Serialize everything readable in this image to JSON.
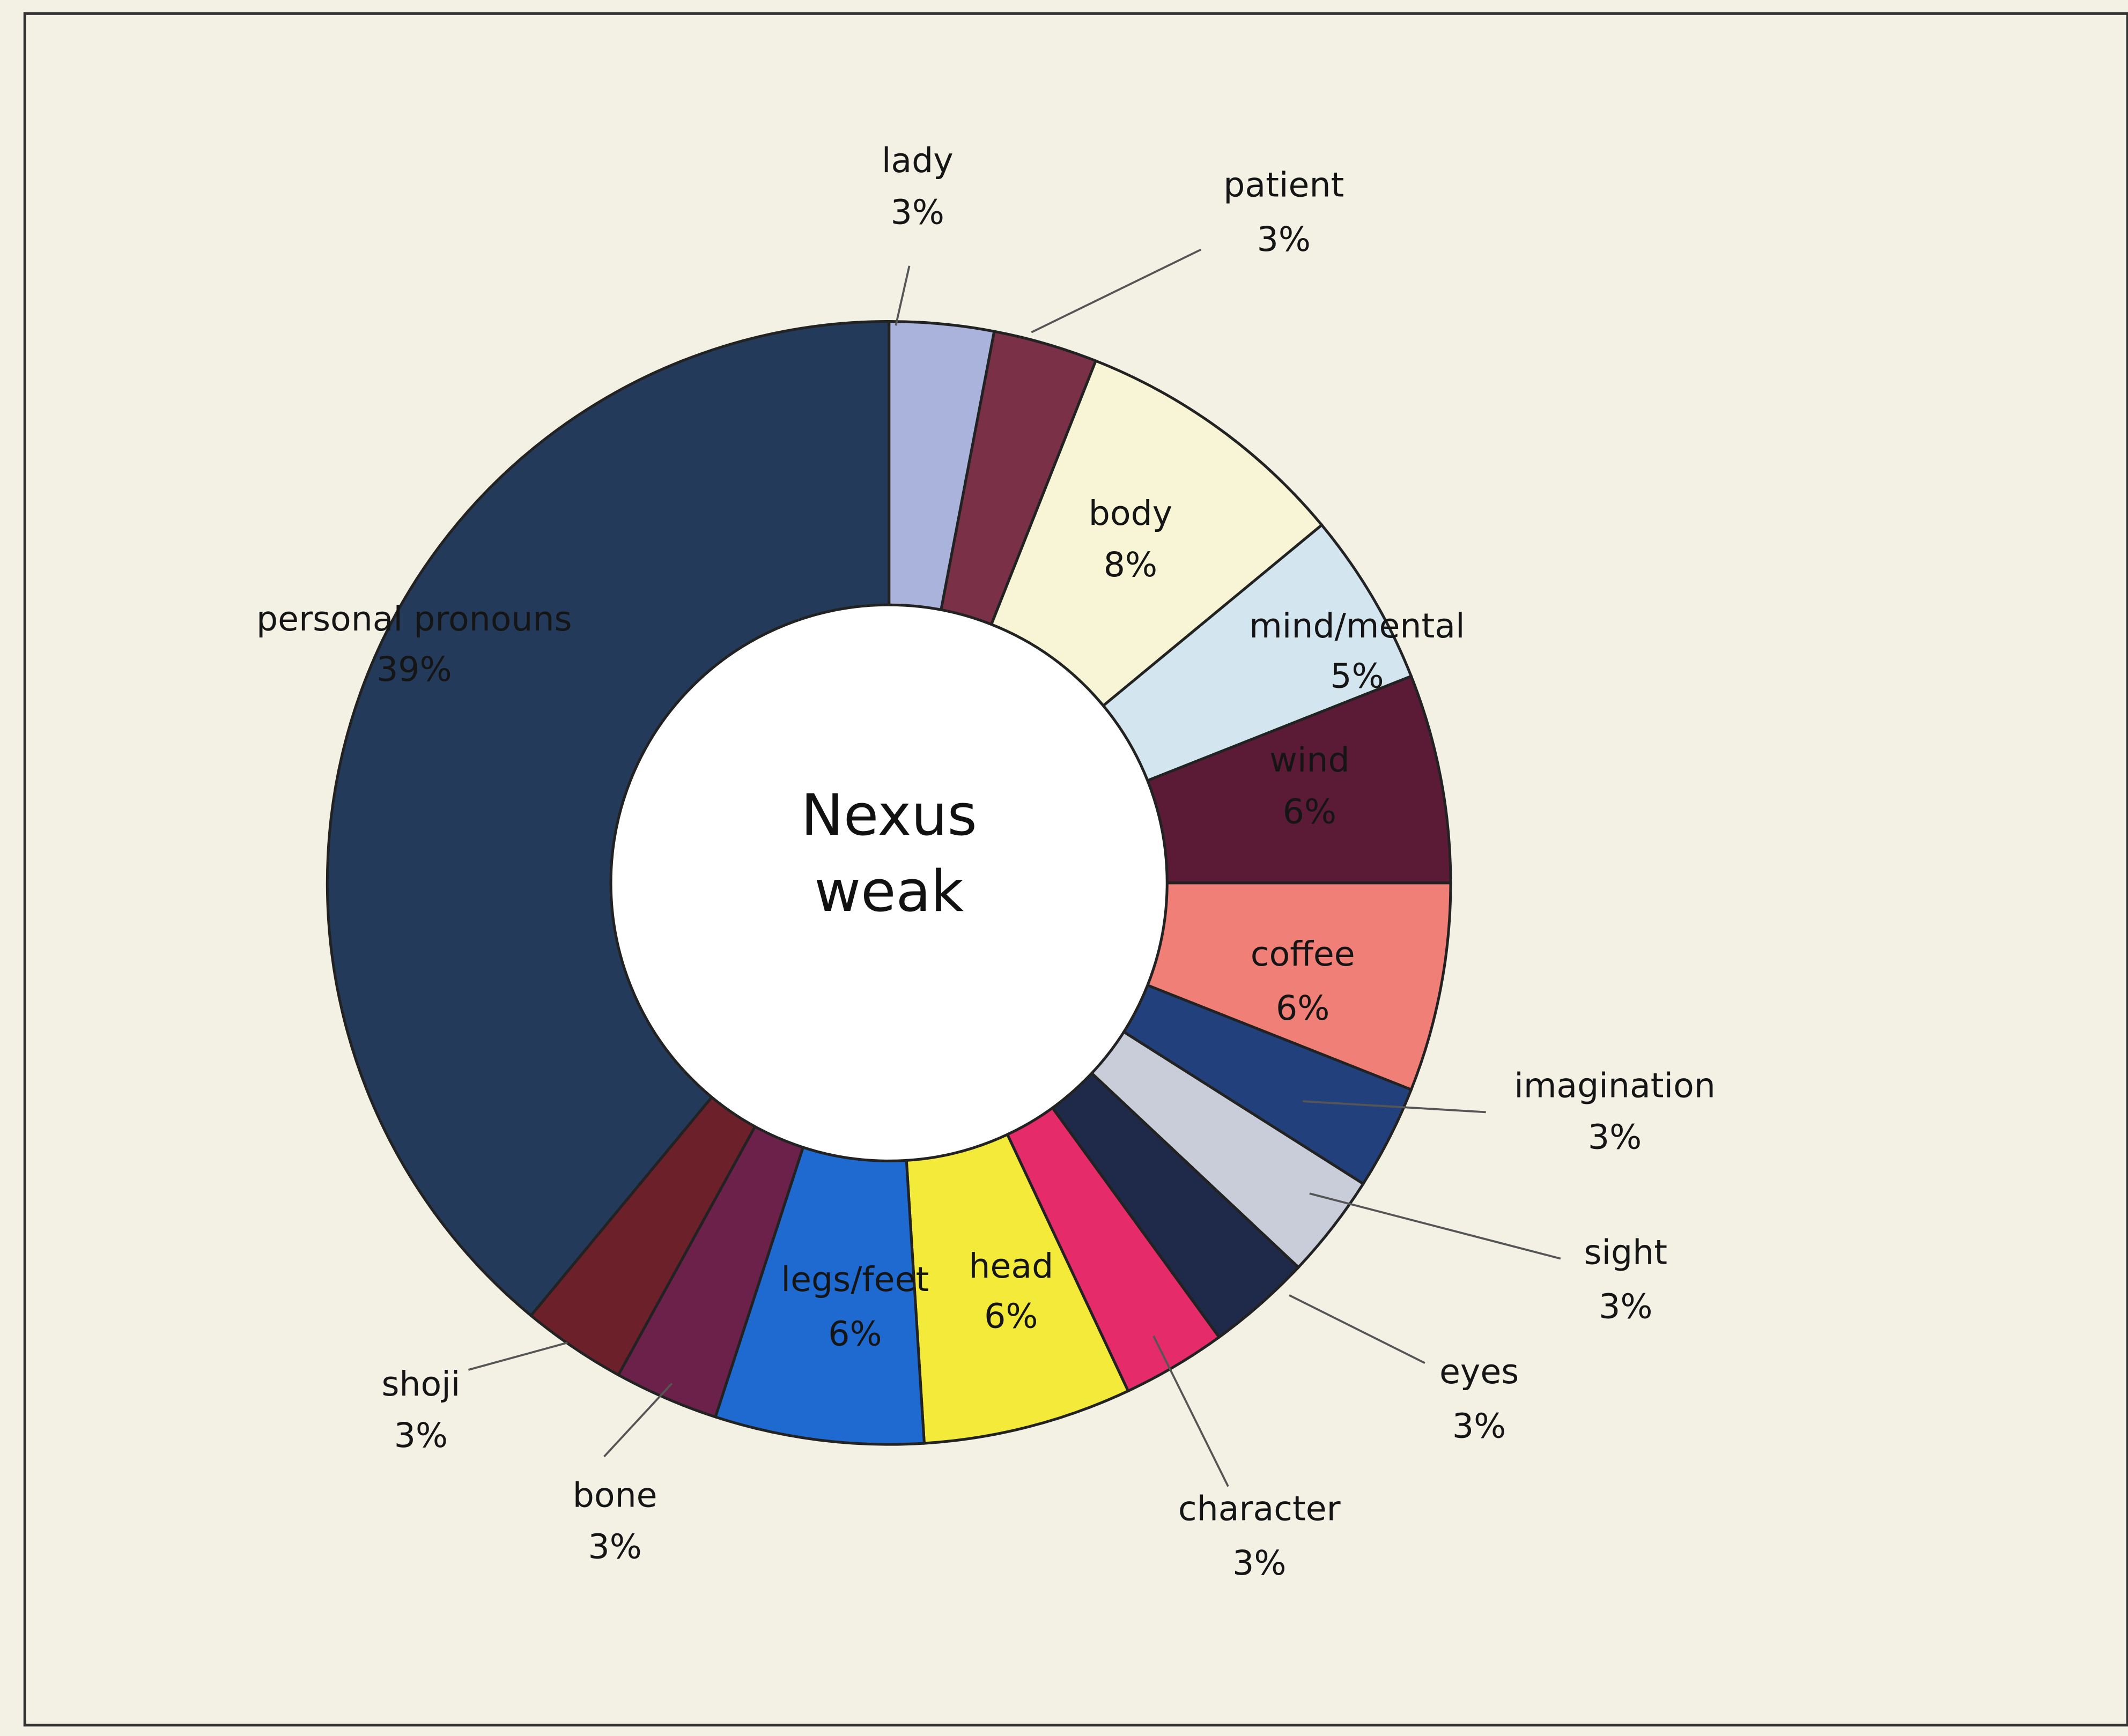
{
  "chart_data": {
    "type": "donut",
    "center_text": [
      "Nexus",
      "weak"
    ],
    "categories": [
      "lady",
      "patient",
      "body",
      "mind/mental",
      "wind",
      "coffee",
      "imagination",
      "sight",
      "eyes",
      "character",
      "head",
      "legs/feet",
      "bone",
      "shoji",
      "personal pronouns"
    ],
    "values": [
      3,
      3,
      8,
      5,
      6,
      6,
      3,
      3,
      3,
      3,
      6,
      6,
      3,
      3,
      39
    ],
    "value_labels": [
      "3%",
      "3%",
      "8%",
      "5%",
      "6%",
      "6%",
      "3%",
      "3%",
      "3%",
      "3%",
      "6%",
      "6%",
      "3%",
      "3%",
      "39%"
    ],
    "colors": [
      "#a9b3dc",
      "#7a3148",
      "#f7f5d6",
      "#d3e6ef",
      "#5b1b37",
      "#f07f77",
      "#22407c",
      "#c9cdd9",
      "#1f2949",
      "#e62b6b",
      "#f3ea3a",
      "#1f6ad0",
      "#6b2149",
      "#6c2029",
      "#233a5a"
    ]
  }
}
